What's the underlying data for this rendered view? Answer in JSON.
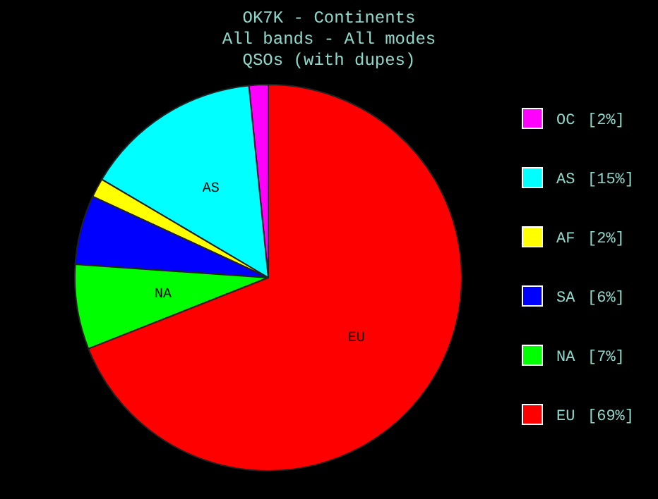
{
  "chart_data": {
    "type": "pie",
    "title": "OK7K - Continents",
    "subtitle": "All bands - All modes\nQSOs (with dupes)",
    "categories": [
      "OC",
      "AS",
      "AF",
      "SA",
      "NA",
      "EU"
    ],
    "values": [
      1.6,
      14.9,
      1.6,
      5.8,
      7.1,
      69.0
    ],
    "value_labels": [
      "[2%]",
      "[15%]",
      "[2%]",
      "[6%]",
      "[7%]",
      "[69%]"
    ],
    "colors": [
      "#ff00ff",
      "#00ffff",
      "#ffff00",
      "#0000ff",
      "#00ff00",
      "#ff0000"
    ],
    "legend": "right"
  }
}
